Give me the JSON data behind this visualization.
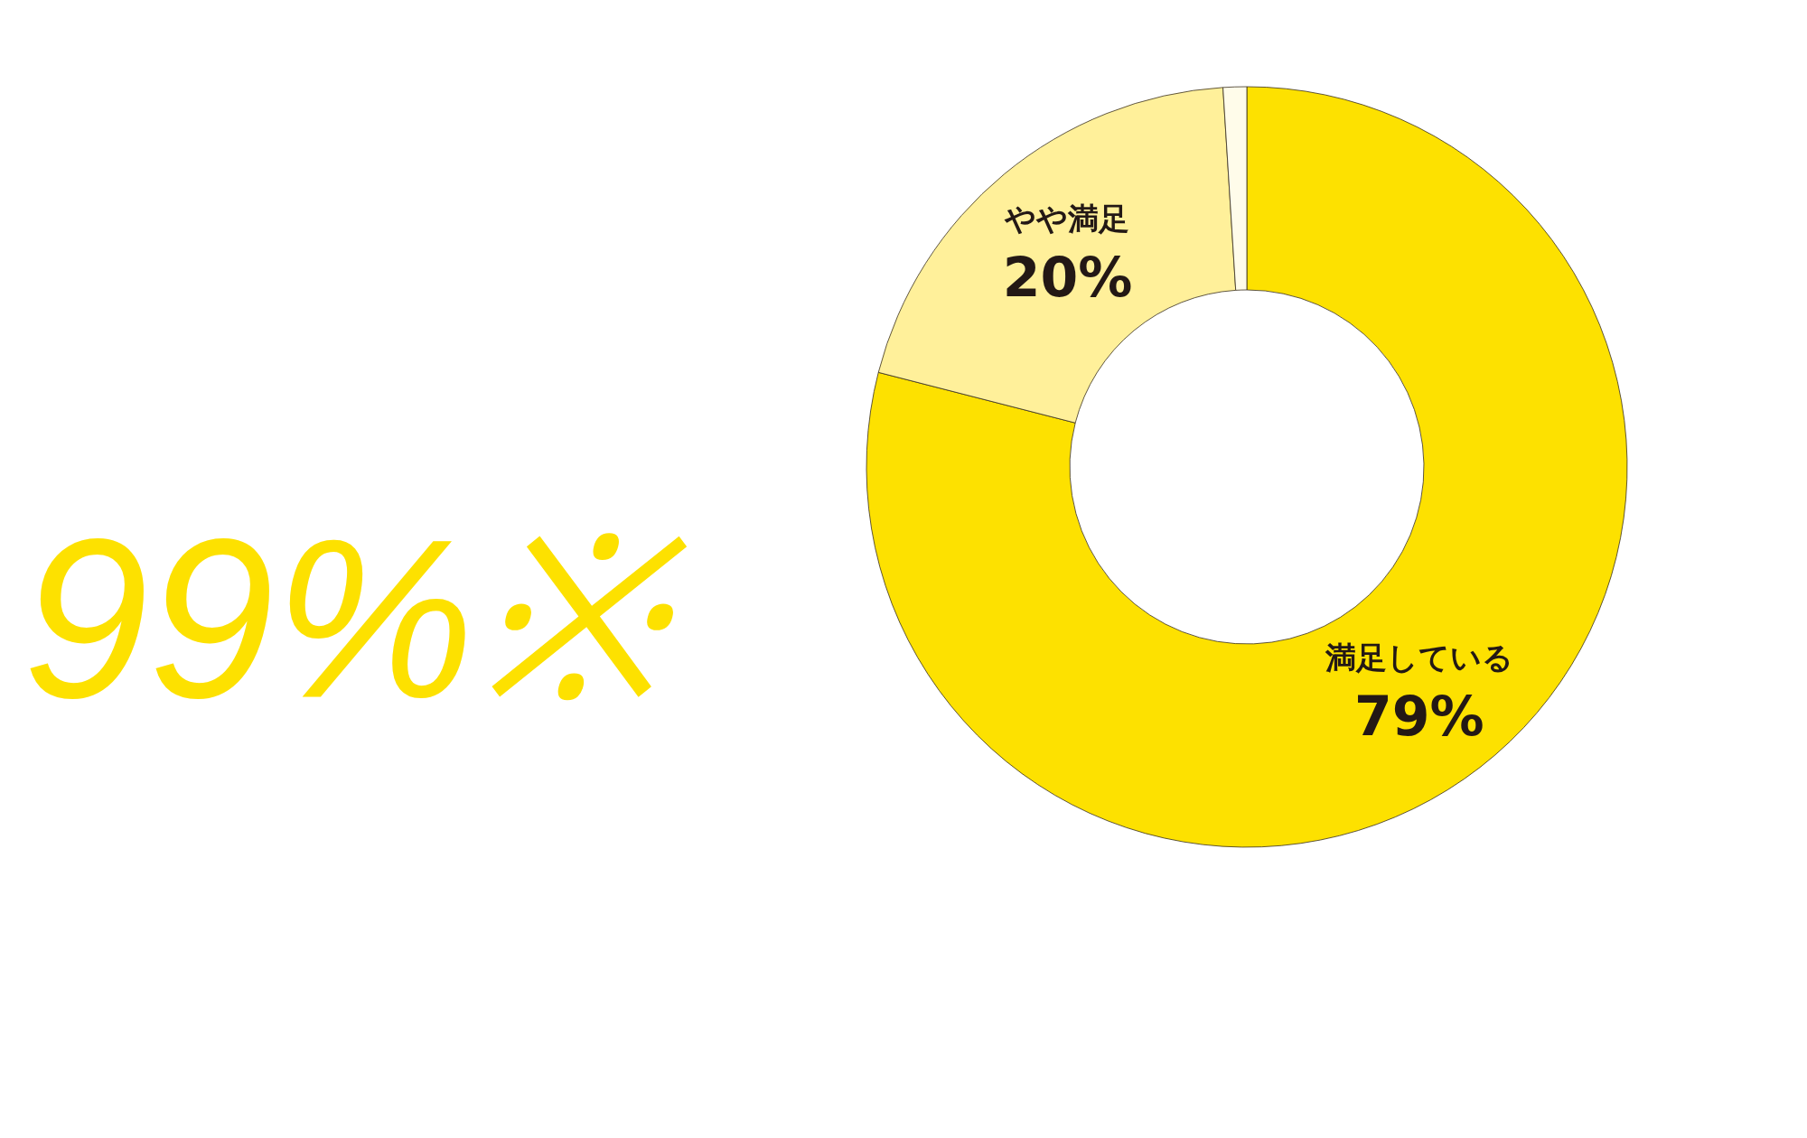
{
  "chart_data": {
    "type": "donut",
    "categories": [
      "満足している",
      "やや満足",
      null
    ],
    "values": [
      79,
      20,
      1
    ],
    "value_labels": [
      "79%",
      "20%",
      null
    ],
    "colors": [
      "#fde100",
      "#fff09a",
      "#fffcea"
    ],
    "annotations": [
      "99%※"
    ],
    "legend": false
  }
}
